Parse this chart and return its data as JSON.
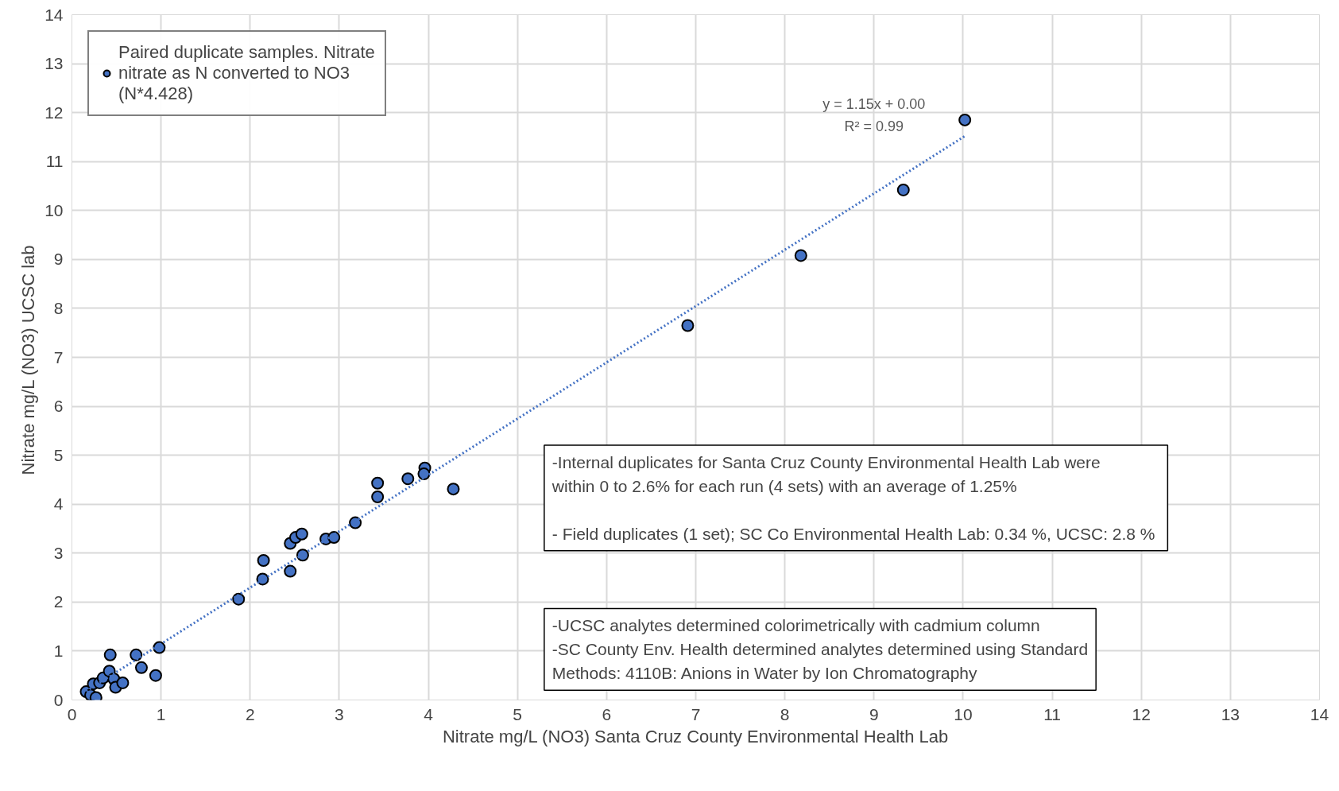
{
  "chart_data": {
    "type": "scatter",
    "xlabel": "Nitrate mg/L (NO3) Santa Cruz County Environmental Health Lab",
    "ylabel": "Nitrate mg/L  (NO3) UCSC lab",
    "xlim": [
      0,
      14
    ],
    "ylim": [
      0,
      14
    ],
    "xticks": [
      0,
      1,
      2,
      3,
      4,
      5,
      6,
      7,
      8,
      9,
      10,
      11,
      12,
      13,
      14
    ],
    "yticks": [
      0,
      1,
      2,
      3,
      4,
      5,
      6,
      7,
      8,
      9,
      10,
      11,
      12,
      13,
      14
    ],
    "grid": true,
    "legend": "top left",
    "marker": "circle",
    "series": [
      {
        "name": "Paired duplicate samples. Nitrate\nnitrate as N converted to NO3\n(N*4.428)",
        "color": "#4472c4",
        "x": [
          0.16,
          0.21,
          0.27,
          0.24,
          0.31,
          0.35,
          0.42,
          0.43,
          0.47,
          0.49,
          0.57,
          0.72,
          0.78,
          0.94,
          0.98,
          1.87,
          2.14,
          2.15,
          2.45,
          2.45,
          2.51,
          2.58,
          2.59,
          2.85,
          2.94,
          3.18,
          3.43,
          3.43,
          3.77,
          3.96,
          3.95,
          4.28,
          6.91,
          8.18,
          9.33,
          10.02
        ],
        "values": [
          0.17,
          0.1,
          0.05,
          0.33,
          0.35,
          0.45,
          0.59,
          0.92,
          0.43,
          0.26,
          0.35,
          0.92,
          0.66,
          0.5,
          1.07,
          2.06,
          2.47,
          2.85,
          2.63,
          3.2,
          3.32,
          3.39,
          2.96,
          3.29,
          3.32,
          3.62,
          4.15,
          4.43,
          4.52,
          4.74,
          4.62,
          4.31,
          7.65,
          9.08,
          10.42,
          11.85
        ]
      },
      {
        "type": "line",
        "line_style": "dotted",
        "marker": "none",
        "color": "#4472c4",
        "x": [
          0.16,
          10.02
        ],
        "values": [
          0.18,
          11.52
        ]
      }
    ],
    "annotations": [
      "y = 1.15x + 0.00\nR² = 0.99",
      " -Internal duplicates for Santa Cruz County Environmental Health Lab were\nwithin 0 to 2.6% for each run (4 sets) with an average of 1.25%\n\n- Field duplicates (1 set); SC Co  Environmental Health Lab: 0.34 %, UCSC: 2.8 %",
      "-UCSC analytes determined colorimetrically with cadmium column\n-SC County Env. Health determined analytes determined using Standard\nMethods: 4110B: Anions in Water by Ion Chromatography"
    ]
  }
}
